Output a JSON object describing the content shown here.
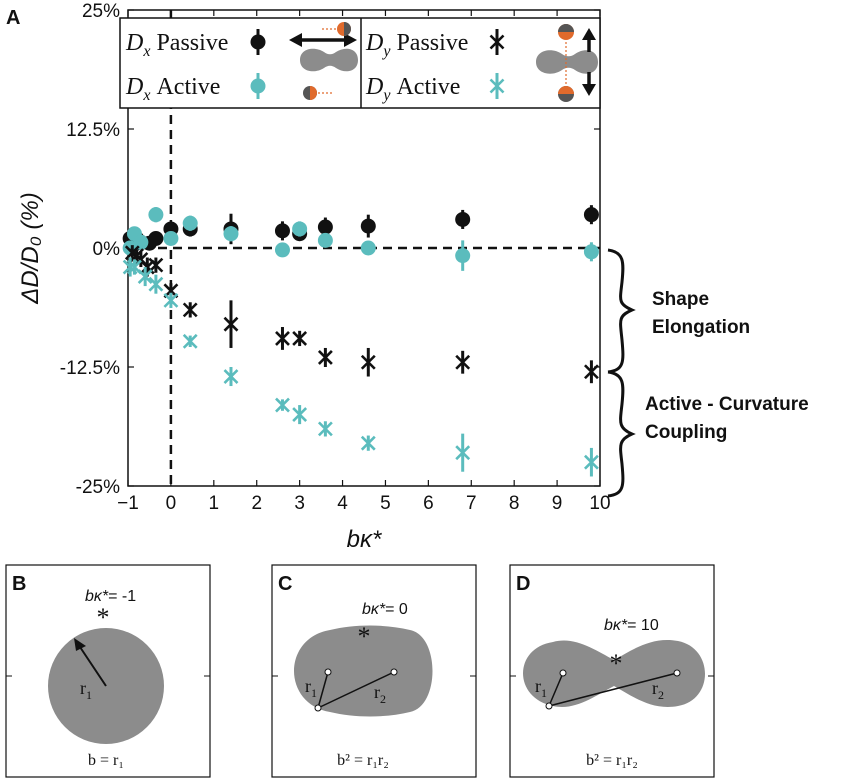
{
  "colors": {
    "passive": "#111111",
    "active": "#5bbcbd",
    "shape": "#8c8c8c",
    "orange": "#e06a2c"
  },
  "chart_data": {
    "type": "scatter",
    "panel_label": "A",
    "xlabel": "bκ*",
    "ylabel": "ΔD/D₀ (%)",
    "xlim": [
      -1,
      10
    ],
    "ylim": [
      -25,
      25
    ],
    "x_ticks": [
      -1,
      0,
      1,
      2,
      3,
      4,
      5,
      6,
      7,
      8,
      9,
      10
    ],
    "x_tick_labels": [
      "−1",
      "0",
      "1",
      "2",
      "3",
      "4",
      "5",
      "6",
      "7",
      "8",
      "9",
      "10"
    ],
    "y_ticks": [
      25,
      12.5,
      0,
      -12.5,
      -25
    ],
    "y_tick_labels": [
      "25%",
      "12.5%",
      "0%",
      "-12.5%",
      "-25%"
    ],
    "reference_lines": [
      {
        "axis": "x",
        "value": 0,
        "style": "dashed"
      },
      {
        "axis": "y",
        "value": 0,
        "style": "dashed"
      }
    ],
    "series": [
      {
        "name": "Dx Passive",
        "legend_label": "Passive",
        "variable": "D",
        "subscript": "x",
        "marker": "circle",
        "color": "#111111",
        "x": [
          -0.95,
          -0.9,
          -0.85,
          -0.8,
          -0.7,
          -0.5,
          -0.35,
          0.0,
          0.45,
          1.4,
          2.6,
          3.0,
          3.6,
          4.6,
          6.8,
          9.8
        ],
        "y": [
          1.0,
          0.6,
          0.4,
          1.0,
          0.6,
          0.5,
          1.0,
          2.0,
          2.0,
          2.0,
          1.8,
          1.5,
          2.2,
          2.3,
          3.0,
          3.5
        ],
        "err": [
          0.6,
          0.5,
          0.6,
          0.8,
          0.6,
          0.5,
          0.5,
          0.6,
          0.8,
          1.6,
          1.0,
          0.6,
          1.0,
          1.2,
          1.0,
          1.0
        ]
      },
      {
        "name": "Dx Active",
        "legend_label": "Active",
        "variable": "D",
        "subscript": "x",
        "marker": "circle",
        "color": "#5bbcbd",
        "x": [
          -0.95,
          -0.85,
          -0.7,
          -0.35,
          0.0,
          0.45,
          1.4,
          2.6,
          3.0,
          3.6,
          4.6,
          6.8,
          9.8
        ],
        "y": [
          0.0,
          1.5,
          0.6,
          3.5,
          1.0,
          2.6,
          1.5,
          -0.2,
          2.0,
          0.8,
          0.0,
          -0.8,
          -0.4
        ],
        "err": [
          0.5,
          0.6,
          0.5,
          0.8,
          0.6,
          0.8,
          0.8,
          0.5,
          0.8,
          0.6,
          0.4,
          1.6,
          1.0
        ]
      },
      {
        "name": "Dy Passive",
        "legend_label": "Passive",
        "variable": "D",
        "subscript": "y",
        "marker": "x",
        "color": "#111111",
        "x": [
          -0.9,
          -0.8,
          -0.7,
          -0.55,
          -0.35,
          0.0,
          0.45,
          1.4,
          2.6,
          3.0,
          3.6,
          4.6,
          6.8,
          9.8
        ],
        "y": [
          -0.5,
          -0.8,
          -1.2,
          -2.0,
          -1.8,
          -4.5,
          -6.5,
          -8.0,
          -9.5,
          -9.5,
          -11.5,
          -12.0,
          -12.0,
          -13.0
        ],
        "err": [
          0.8,
          0.6,
          0.8,
          1.0,
          0.8,
          0.8,
          0.8,
          2.5,
          1.2,
          0.8,
          1.0,
          1.5,
          1.2,
          1.2
        ]
      },
      {
        "name": "Dy Active",
        "legend_label": "Active",
        "variable": "D",
        "subscript": "y",
        "marker": "x",
        "color": "#5bbcbd",
        "x": [
          -0.95,
          -0.85,
          -0.6,
          -0.35,
          0.0,
          0.45,
          1.4,
          2.6,
          3.0,
          3.6,
          4.6,
          6.8,
          9.8
        ],
        "y": [
          -2.0,
          -2.0,
          -3.0,
          -3.8,
          -5.5,
          -9.8,
          -13.5,
          -16.5,
          -17.5,
          -19.0,
          -20.5,
          -21.5,
          -22.5
        ],
        "err": [
          1.0,
          0.8,
          1.0,
          1.0,
          0.8,
          0.6,
          1.0,
          0.6,
          1.0,
          0.8,
          0.8,
          2.0,
          1.5
        ]
      }
    ],
    "annotations": [
      {
        "brace": "upper",
        "lines": [
          "Shape",
          "Elongation"
        ]
      },
      {
        "brace": "lower",
        "lines": [
          "Active - Curvature",
          "Coupling"
        ]
      }
    ]
  },
  "subpanels": [
    {
      "label": "B",
      "title_prefix": "bκ*",
      "title_value": "= -1",
      "shape": "circle",
      "radii": [
        "r",
        "1"
      ],
      "formula": "b = r₁"
    },
    {
      "label": "C",
      "title_prefix": "bκ*",
      "title_value": "= 0",
      "shape": "capsule",
      "radii": [
        "r",
        "1",
        "r",
        "2"
      ],
      "formula": "b² = r₁r₂"
    },
    {
      "label": "D",
      "title_prefix": "bκ*",
      "title_value": "= 10",
      "shape": "peanut",
      "radii": [
        "r",
        "1",
        "r",
        "2"
      ],
      "formula": "b² = r₁r₂"
    }
  ]
}
